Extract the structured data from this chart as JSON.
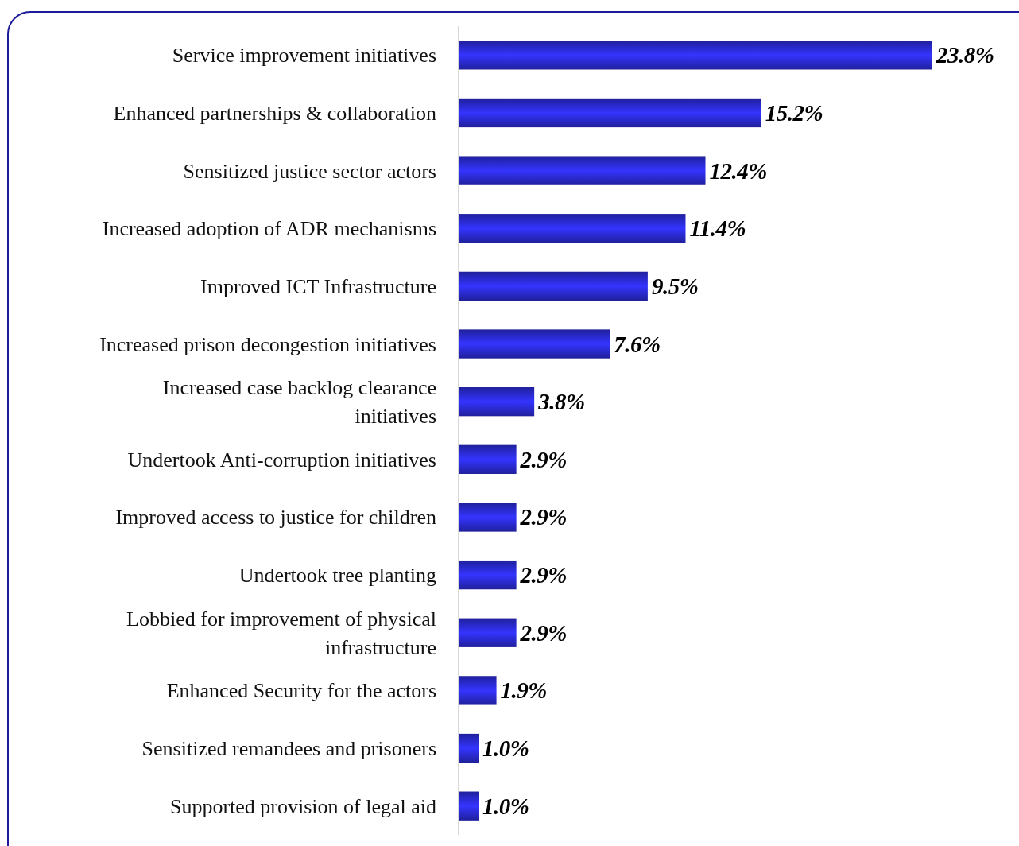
{
  "chart_data": {
    "type": "bar",
    "orientation": "horizontal",
    "categories": [
      "Service improvement initiatives",
      "Enhanced partnerships & collaboration",
      "Sensitized justice sector actors",
      "Increased adoption of ADR mechanisms",
      "Improved ICT Infrastructure",
      "Increased prison decongestion initiatives",
      "Increased case backlog clearance initiatives",
      "Undertook Anti-corruption initiatives",
      "Improved access to justice for children",
      "Undertook tree planting",
      "Lobbied for improvement of physical infrastructure",
      "Enhanced Security for the actors",
      "Sensitized remandees and prisoners",
      "Supported provision of legal aid"
    ],
    "values": [
      23.8,
      15.2,
      12.4,
      11.4,
      9.5,
      7.6,
      3.8,
      2.9,
      2.9,
      2.9,
      2.9,
      1.9,
      1.0,
      1.0
    ],
    "value_labels": [
      "23.8%",
      "15.2%",
      "12.4%",
      "11.4%",
      "9.5%",
      "7.6%",
      "3.8%",
      "2.9%",
      "2.9%",
      "2.9%",
      "2.9%",
      "1.9%",
      "1.0%",
      "1.0%"
    ],
    "color": "#2a2ad0",
    "grid": false
  }
}
